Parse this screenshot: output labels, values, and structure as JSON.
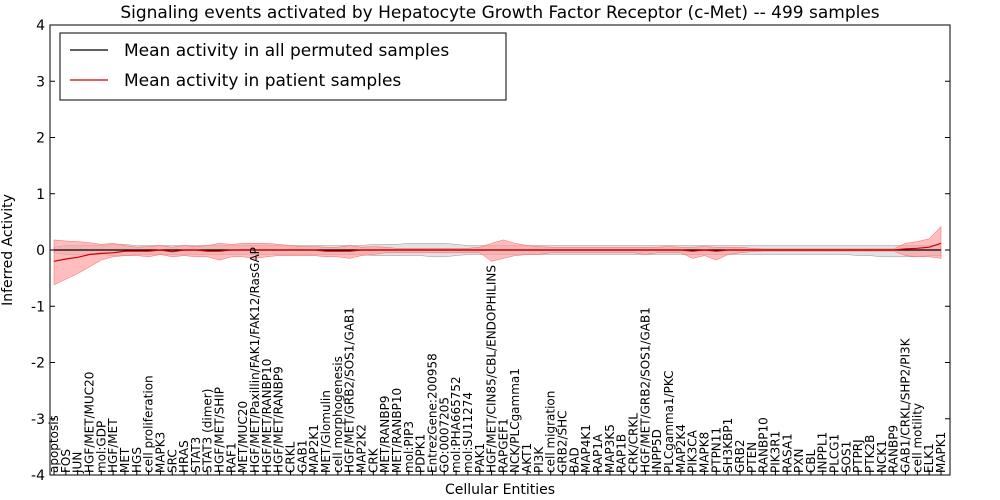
{
  "chart_data": {
    "type": "line",
    "title": "Signaling events activated by Hepatocyte Growth Factor Receptor (c-Met) -- 499 samples",
    "xlabel": "Cellular Entities",
    "ylabel": "Inferred Activity",
    "ylim": [
      -4,
      4
    ],
    "yticks": [
      "-4",
      "-3",
      "-2",
      "-1",
      "0",
      "1",
      "2",
      "3",
      "4"
    ],
    "legend_position": "top-left",
    "colors": {
      "permuted": "#000000",
      "patient": "#cc0000",
      "patient_band": "#ff9999",
      "permuted_band": "#cfcfcf"
    },
    "categories": [
      "apoptosis",
      "FOS",
      "JUN",
      "HGF/MET/MUC20",
      "mol:GDP",
      "HGF/MET",
      "MET",
      "HGS",
      "cell proliferation",
      "MAPK3",
      "SRC",
      "HRAS",
      "STAT3",
      "STAT3 (dimer)",
      "HGF/MET/SHIP",
      "RAF1",
      "MET/MUC20",
      "HGF/MET/Paxillin/FAK1/FAK12/RasGAP",
      "HGF/MET/RANBP10",
      "HGF/MET/RANBP9",
      "CRKL",
      "GAB1",
      "MAP2K1",
      "MET/Glomulin",
      "cell morphogenesis",
      "HGF/MET/GRB2/SOS1/GAB1",
      "MAP2K2",
      "CRK",
      "MET/RANBP9",
      "MET/RANBP10",
      "mol:PIP3",
      "PDPK1",
      "EntrezGene:200958",
      "GO:0007205",
      "mol:PHA665752",
      "mol:SU11274",
      "PAK1",
      "HGF/MET/CIN85/CBL/ENDOPHILINS",
      "RAPGEF1",
      "NCK/PLCgamma1",
      "AKT1",
      "PI3K",
      "cell migration",
      "GRB2/SHC",
      "BAD",
      "MAP4K1",
      "RAP1A",
      "MAP3K5",
      "RAP1B",
      "CRK/CRKL",
      "HGF/MET/GRB2/SOS1/GAB1",
      "INPP5D",
      "PLCgamma1/PKC",
      "MAP2K4",
      "PIK3CA",
      "MAPK8",
      "PTPN11",
      "SH3KBP1",
      "GRB2",
      "PTEN",
      "RANBP10",
      "PIK3R1",
      "RASA1",
      "PXN",
      "CBL",
      "INPPL1",
      "PLCG1",
      "SOS1",
      "PTPRJ",
      "PTK2B",
      "NCK1",
      "RANBP9",
      "GAB1/CRKL/SHP2/PI3K",
      "cell motility",
      "ELK1",
      "MAPK1"
    ],
    "series": [
      {
        "name": "Mean activity in all permuted samples",
        "values": [
          0,
          0,
          0,
          0,
          0,
          0,
          0,
          0,
          0,
          0,
          0,
          0,
          0,
          0,
          0,
          0,
          0,
          0,
          0,
          0,
          0,
          0,
          0,
          0,
          0,
          0,
          0,
          0,
          0,
          0,
          0,
          0,
          0,
          0,
          0,
          0,
          0,
          0,
          0,
          0,
          0,
          0,
          0,
          0,
          0,
          0,
          0,
          0,
          0,
          0,
          0,
          0,
          0,
          0,
          0,
          0,
          0,
          0,
          0,
          0,
          0,
          0,
          0,
          0,
          0,
          0,
          0,
          0,
          0,
          0,
          0,
          0,
          0,
          0,
          0,
          0
        ],
        "lower": [
          -0.05,
          -0.08,
          -0.08,
          -0.08,
          -0.08,
          -0.1,
          -0.1,
          -0.08,
          -0.08,
          -0.08,
          -0.08,
          -0.08,
          -0.08,
          -0.08,
          -0.08,
          -0.08,
          -0.08,
          -0.08,
          -0.08,
          -0.08,
          -0.08,
          -0.08,
          -0.08,
          -0.08,
          -0.08,
          -0.08,
          -0.08,
          -0.1,
          -0.1,
          -0.1,
          -0.1,
          -0.1,
          -0.12,
          -0.12,
          -0.1,
          -0.08,
          -0.08,
          -0.08,
          -0.08,
          -0.08,
          -0.08,
          -0.08,
          -0.08,
          -0.08,
          -0.08,
          -0.08,
          -0.08,
          -0.08,
          -0.08,
          -0.08,
          -0.08,
          -0.08,
          -0.08,
          -0.08,
          -0.08,
          -0.08,
          -0.08,
          -0.08,
          -0.08,
          -0.08,
          -0.08,
          -0.08,
          -0.08,
          -0.08,
          -0.08,
          -0.08,
          -0.08,
          -0.08,
          -0.1,
          -0.1,
          -0.12,
          -0.12,
          -0.12,
          -0.12,
          -0.1,
          -0.1
        ],
        "upper": [
          0.05,
          0.08,
          0.08,
          0.08,
          0.08,
          0.1,
          0.1,
          0.08,
          0.08,
          0.08,
          0.08,
          0.08,
          0.08,
          0.08,
          0.08,
          0.08,
          0.08,
          0.08,
          0.08,
          0.08,
          0.08,
          0.08,
          0.08,
          0.08,
          0.08,
          0.08,
          0.08,
          0.1,
          0.1,
          0.1,
          0.12,
          0.12,
          0.12,
          0.12,
          0.1,
          0.08,
          0.08,
          0.08,
          0.08,
          0.08,
          0.08,
          0.08,
          0.08,
          0.08,
          0.08,
          0.08,
          0.08,
          0.08,
          0.08,
          0.08,
          0.08,
          0.08,
          0.08,
          0.08,
          0.08,
          0.08,
          0.08,
          0.08,
          0.08,
          0.08,
          0.08,
          0.08,
          0.08,
          0.08,
          0.08,
          0.08,
          0.08,
          0.08,
          0.08,
          0.08,
          0.08,
          0.08,
          0.08,
          0.08,
          0.08,
          0.08
        ]
      },
      {
        "name": "Mean activity in patient samples",
        "values": [
          -0.2,
          -0.16,
          -0.13,
          -0.08,
          -0.06,
          -0.05,
          -0.02,
          -0.02,
          -0.02,
          0,
          -0.03,
          0,
          0,
          -0.02,
          -0.02,
          0,
          0,
          0,
          0,
          0,
          0,
          0,
          0,
          -0.02,
          -0.02,
          -0.02,
          0,
          0,
          0,
          0,
          0,
          0,
          0,
          0,
          0,
          0,
          0,
          0,
          0,
          0,
          0,
          0,
          0,
          0,
          0,
          0,
          0,
          0,
          0,
          0,
          0,
          0,
          0,
          0,
          -0.02,
          0,
          -0.02,
          0,
          0,
          0,
          0,
          0,
          0,
          0,
          0,
          0,
          0,
          0,
          0,
          0,
          0,
          0,
          0.02,
          0.03,
          0.05,
          0.12
        ],
        "lower": [
          -0.62,
          -0.52,
          -0.42,
          -0.3,
          -0.18,
          -0.12,
          -0.1,
          -0.1,
          -0.12,
          -0.08,
          -0.12,
          -0.1,
          -0.12,
          -0.12,
          -0.18,
          -0.12,
          -0.12,
          -0.15,
          -0.12,
          -0.1,
          -0.1,
          -0.1,
          -0.1,
          -0.12,
          -0.12,
          -0.15,
          -0.1,
          -0.08,
          -0.05,
          -0.05,
          -0.05,
          -0.05,
          -0.05,
          -0.05,
          -0.05,
          -0.05,
          -0.05,
          -0.2,
          -0.15,
          -0.1,
          -0.08,
          -0.08,
          -0.05,
          -0.05,
          -0.05,
          -0.05,
          -0.05,
          -0.05,
          -0.05,
          -0.05,
          -0.08,
          -0.05,
          -0.05,
          -0.05,
          -0.15,
          -0.1,
          -0.18,
          -0.08,
          -0.05,
          -0.03,
          -0.02,
          -0.02,
          -0.02,
          -0.02,
          -0.02,
          -0.02,
          -0.02,
          -0.02,
          -0.02,
          -0.02,
          -0.02,
          -0.02,
          -0.1,
          -0.12,
          -0.12,
          -0.15
        ],
        "upper": [
          0.18,
          0.16,
          0.15,
          0.13,
          0.1,
          0.12,
          0.08,
          0.05,
          0.06,
          0.08,
          0.05,
          0.08,
          0.06,
          0.08,
          0.12,
          0.1,
          0.12,
          0.12,
          0.12,
          0.1,
          0.08,
          0.06,
          0.06,
          0.05,
          0.05,
          0.08,
          0.05,
          0.06,
          0.05,
          0.03,
          0.03,
          0.03,
          0.03,
          0.03,
          0.03,
          0.03,
          0.05,
          0.12,
          0.18,
          0.12,
          0.08,
          0.06,
          0.05,
          0.05,
          0.05,
          0.05,
          0.05,
          0.05,
          0.05,
          0.05,
          0.05,
          0.05,
          0.06,
          0.05,
          0.05,
          0.06,
          0.05,
          0.05,
          0.05,
          0.03,
          0.02,
          0.02,
          0.02,
          0.02,
          0.02,
          0.02,
          0.02,
          0.02,
          0.02,
          0.02,
          0.02,
          0.02,
          0.12,
          0.15,
          0.2,
          0.42
        ]
      }
    ]
  }
}
